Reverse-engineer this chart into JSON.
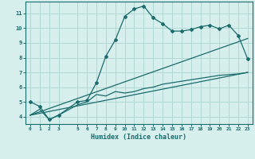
{
  "xlabel": "Humidex (Indice chaleur)",
  "bg_color": "#d6eeec",
  "grid_color": "#b0d8d5",
  "line_color": "#1a6b6b",
  "xlim": [
    -0.5,
    23.5
  ],
  "ylim": [
    3.5,
    11.8
  ],
  "xticks": [
    0,
    1,
    2,
    3,
    5,
    6,
    7,
    8,
    9,
    10,
    11,
    12,
    13,
    14,
    15,
    16,
    17,
    18,
    19,
    20,
    21,
    22,
    23
  ],
  "yticks": [
    4,
    5,
    6,
    7,
    8,
    9,
    10,
    11
  ],
  "curve1_x": [
    0,
    1,
    2,
    3,
    5,
    6,
    7,
    8,
    9,
    10,
    11,
    12,
    13,
    14,
    15,
    16,
    17,
    18,
    19,
    20,
    21,
    22,
    23
  ],
  "curve1_y": [
    5.0,
    4.7,
    3.8,
    4.1,
    5.0,
    5.1,
    6.3,
    8.1,
    9.2,
    10.8,
    11.3,
    11.5,
    10.7,
    10.3,
    9.8,
    9.8,
    9.9,
    10.1,
    10.2,
    9.95,
    10.2,
    9.5,
    7.9
  ],
  "curve2_x": [
    0,
    1,
    2,
    3,
    5,
    6,
    7,
    8,
    9,
    10,
    11,
    12,
    13,
    14,
    15,
    16,
    17,
    18,
    19,
    20,
    21,
    22,
    23
  ],
  "curve2_y": [
    4.1,
    4.5,
    3.8,
    4.1,
    4.8,
    5.0,
    5.5,
    5.4,
    5.7,
    5.6,
    5.7,
    5.9,
    6.0,
    6.2,
    6.3,
    6.4,
    6.5,
    6.6,
    6.7,
    6.8,
    6.85,
    6.9,
    7.0
  ],
  "curve3_x": [
    0,
    23
  ],
  "curve3_y": [
    4.1,
    9.3
  ],
  "curve4_x": [
    0,
    23
  ],
  "curve4_y": [
    4.1,
    7.0
  ],
  "marker_x": [
    0,
    1,
    2,
    3,
    5,
    6,
    7,
    8,
    9,
    10,
    11,
    12,
    13,
    14,
    15,
    16,
    17,
    18,
    19,
    20,
    21,
    22,
    23
  ],
  "marker_y": [
    5.0,
    4.7,
    3.8,
    4.1,
    5.0,
    5.1,
    6.3,
    8.1,
    9.2,
    10.8,
    11.3,
    11.5,
    10.7,
    10.3,
    9.8,
    9.8,
    9.9,
    10.1,
    10.2,
    9.95,
    10.2,
    9.5,
    7.9
  ]
}
